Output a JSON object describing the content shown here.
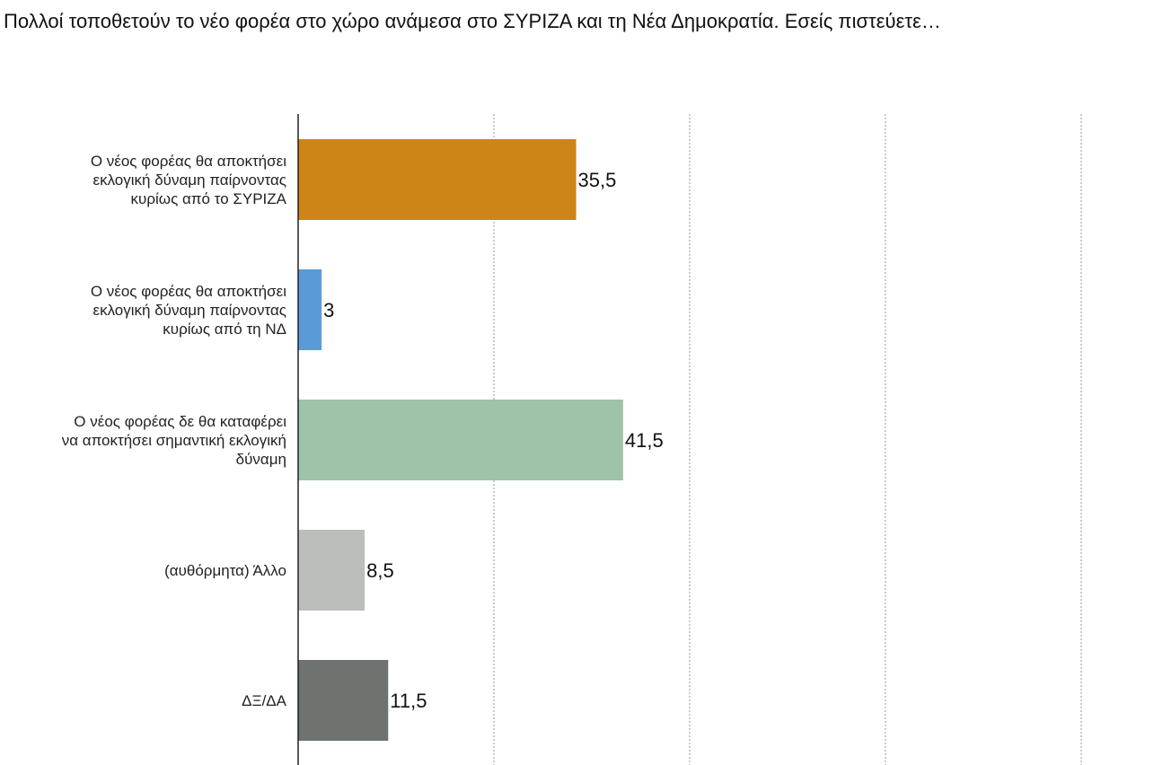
{
  "title": "Πολλοί τοποθετούν το νέο φορέα στο χώρο ανάμεσα στο ΣΥΡΙΖΑ και τη Νέα Δημοκρατία. Εσείς πιστεύετε…",
  "chart_data": {
    "type": "bar",
    "orientation": "horizontal",
    "categories": [
      "Ο νέος φορέας θα αποκτήσει εκλογική δύναμη παίρνοντας κυρίως από το ΣΥΡΙΖΑ",
      "Ο νέος φορέας θα αποκτήσει εκλογική δύναμη παίρνοντας κυρίως από τη ΝΔ",
      "Ο νέος φορέας δε θα καταφέρει να αποκτήσει σημαντική εκλογική δύναμη",
      "(αυθόρμητα) Άλλο",
      "ΔΞ/ΔΑ"
    ],
    "category_lines": [
      [
        "Ο νέος φορέας θα αποκτήσει",
        "εκλογική δύναμη παίρνοντας",
        "κυρίως από το ΣΥΡΙΖΑ"
      ],
      [
        "Ο νέος φορέας θα αποκτήσει",
        "εκλογική δύναμη παίρνοντας",
        "κυρίως από τη ΝΔ"
      ],
      [
        "Ο νέος φορέας δε θα καταφέρει",
        "να αποκτήσει σημαντική εκλογική",
        "δύναμη"
      ],
      [
        "(αυθόρμητα) Άλλο"
      ],
      [
        "ΔΞ/ΔΑ"
      ]
    ],
    "values": [
      35.5,
      3,
      41.5,
      8.5,
      11.5
    ],
    "value_labels": [
      "35,5",
      "3",
      "41,5",
      "8,5",
      "11,5"
    ],
    "colors": [
      "#CE8416",
      "#5B9BD5",
      "#9DC3A8",
      "#BCBEBC",
      "#6E7370"
    ],
    "xlim": [
      0,
      100
    ],
    "gridlines": [
      25,
      50,
      75,
      100
    ],
    "grid": "vertical dashed",
    "legend": "none"
  }
}
